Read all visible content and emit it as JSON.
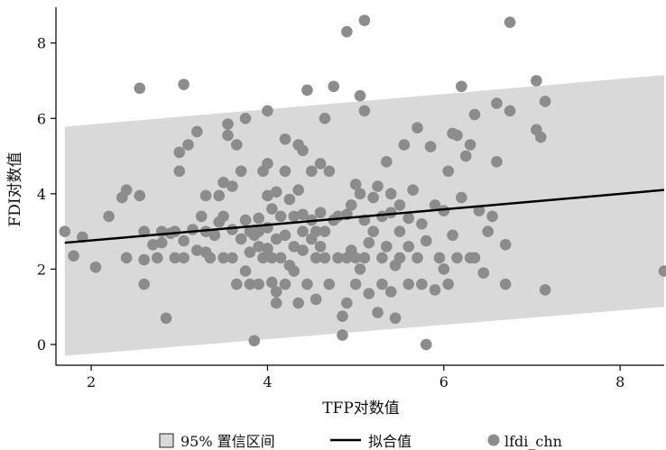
{
  "chart_data": {
    "type": "scatter",
    "title": "",
    "xlabel": "TFP对数值",
    "ylabel": "FDI对数值",
    "xlim": [
      1.6,
      8.5
    ],
    "ylim": [
      -0.55,
      8.95
    ],
    "xticks": [
      2,
      4,
      6,
      8
    ],
    "yticks": [
      0,
      2,
      4,
      6,
      8
    ],
    "grid": false,
    "legend_position": "bottom",
    "colors": {
      "points": "#8c8c8c",
      "band": "#d9d9d9",
      "fit": "#000000"
    },
    "series": [
      {
        "name": "95% 置信区间",
        "kind": "band",
        "x": [
          1.7,
          8.5
        ],
        "lower": [
          -0.3,
          1.0
        ],
        "upper": [
          5.78,
          7.15
        ]
      },
      {
        "name": "拟合值",
        "kind": "line",
        "x": [
          1.7,
          8.5
        ],
        "y": [
          2.7,
          4.1
        ]
      },
      {
        "name": "lfdi_chn",
        "kind": "scatter",
        "points": [
          [
            1.7,
            3.0
          ],
          [
            1.8,
            2.35
          ],
          [
            1.9,
            2.85
          ],
          [
            2.05,
            2.05
          ],
          [
            2.2,
            3.4
          ],
          [
            2.35,
            3.9
          ],
          [
            2.4,
            4.1
          ],
          [
            2.4,
            2.3
          ],
          [
            2.55,
            3.95
          ],
          [
            2.55,
            6.8
          ],
          [
            2.6,
            3.0
          ],
          [
            2.6,
            2.25
          ],
          [
            2.6,
            1.6
          ],
          [
            2.7,
            2.65
          ],
          [
            2.75,
            2.3
          ],
          [
            2.8,
            2.7
          ],
          [
            2.8,
            3.0
          ],
          [
            2.85,
            0.7
          ],
          [
            2.9,
            2.95
          ],
          [
            2.95,
            2.3
          ],
          [
            2.95,
            3.0
          ],
          [
            3.0,
            5.1
          ],
          [
            3.0,
            4.6
          ],
          [
            3.05,
            2.75
          ],
          [
            3.05,
            2.3
          ],
          [
            3.05,
            6.9
          ],
          [
            3.1,
            5.3
          ],
          [
            3.15,
            3.05
          ],
          [
            3.2,
            5.65
          ],
          [
            3.2,
            2.5
          ],
          [
            3.25,
            3.4
          ],
          [
            3.3,
            3.95
          ],
          [
            3.3,
            3.0
          ],
          [
            3.3,
            2.45
          ],
          [
            3.35,
            2.3
          ],
          [
            3.4,
            2.9
          ],
          [
            3.45,
            3.95
          ],
          [
            3.45,
            3.25
          ],
          [
            3.5,
            2.3
          ],
          [
            3.5,
            3.4
          ],
          [
            3.5,
            4.3
          ],
          [
            3.55,
            5.85
          ],
          [
            3.55,
            5.55
          ],
          [
            3.6,
            3.05
          ],
          [
            3.6,
            2.3
          ],
          [
            3.6,
            4.2
          ],
          [
            3.65,
            5.3
          ],
          [
            3.65,
            1.6
          ],
          [
            3.7,
            4.6
          ],
          [
            3.7,
            2.8
          ],
          [
            3.75,
            3.3
          ],
          [
            3.75,
            1.95
          ],
          [
            3.75,
            6.0
          ],
          [
            3.8,
            2.45
          ],
          [
            3.8,
            1.6
          ],
          [
            3.8,
            3.0
          ],
          [
            3.85,
            0.1
          ],
          [
            3.85,
            2.9
          ],
          [
            3.9,
            2.6
          ],
          [
            3.9,
            3.0
          ],
          [
            3.9,
            1.6
          ],
          [
            3.9,
            3.35
          ],
          [
            3.95,
            4.6
          ],
          [
            3.95,
            2.3
          ],
          [
            4.0,
            4.8
          ],
          [
            4.0,
            3.95
          ],
          [
            4.0,
            2.55
          ],
          [
            4.0,
            6.2
          ],
          [
            4.0,
            3.1
          ],
          [
            4.05,
            2.3
          ],
          [
            4.05,
            1.65
          ],
          [
            4.05,
            3.6
          ],
          [
            4.1,
            1.4
          ],
          [
            4.1,
            1.1
          ],
          [
            4.1,
            2.8
          ],
          [
            4.1,
            4.05
          ],
          [
            4.15,
            2.3
          ],
          [
            4.15,
            3.4
          ],
          [
            4.2,
            1.6
          ],
          [
            4.2,
            2.9
          ],
          [
            4.2,
            4.6
          ],
          [
            4.2,
            5.45
          ],
          [
            4.25,
            3.85
          ],
          [
            4.25,
            2.1
          ],
          [
            4.3,
            1.95
          ],
          [
            4.3,
            3.4
          ],
          [
            4.3,
            2.6
          ],
          [
            4.35,
            1.1
          ],
          [
            4.35,
            4.1
          ],
          [
            4.35,
            5.3
          ],
          [
            4.4,
            2.5
          ],
          [
            4.4,
            3.0
          ],
          [
            4.4,
            3.45
          ],
          [
            4.4,
            5.15
          ],
          [
            4.45,
            6.75
          ],
          [
            4.45,
            1.6
          ],
          [
            4.5,
            2.8
          ],
          [
            4.5,
            3.3
          ],
          [
            4.5,
            4.6
          ],
          [
            4.55,
            2.3
          ],
          [
            4.55,
            3.0
          ],
          [
            4.55,
            1.2
          ],
          [
            4.6,
            2.6
          ],
          [
            4.6,
            4.8
          ],
          [
            4.6,
            3.5
          ],
          [
            4.65,
            2.3
          ],
          [
            4.65,
            3.0
          ],
          [
            4.65,
            6.0
          ],
          [
            4.7,
            4.6
          ],
          [
            4.7,
            1.6
          ],
          [
            4.75,
            3.3
          ],
          [
            4.75,
            6.85
          ],
          [
            4.8,
            2.3
          ],
          [
            4.8,
            3.4
          ],
          [
            4.85,
            0.25
          ],
          [
            4.85,
            0.75
          ],
          [
            4.9,
            3.45
          ],
          [
            4.9,
            2.3
          ],
          [
            4.9,
            1.1
          ],
          [
            4.9,
            8.3
          ],
          [
            4.95,
            2.5
          ],
          [
            4.95,
            3.7
          ],
          [
            5.0,
            4.25
          ],
          [
            5.0,
            2.3
          ],
          [
            5.0,
            1.6
          ],
          [
            5.05,
            6.6
          ],
          [
            5.05,
            4.0
          ],
          [
            5.05,
            2.0
          ],
          [
            5.1,
            3.3
          ],
          [
            5.1,
            2.3
          ],
          [
            5.1,
            8.6
          ],
          [
            5.1,
            6.2
          ],
          [
            5.15,
            2.7
          ],
          [
            5.15,
            1.35
          ],
          [
            5.2,
            3.0
          ],
          [
            5.2,
            3.9
          ],
          [
            5.25,
            0.85
          ],
          [
            5.25,
            4.2
          ],
          [
            5.3,
            2.3
          ],
          [
            5.3,
            1.6
          ],
          [
            5.3,
            3.4
          ],
          [
            5.35,
            4.85
          ],
          [
            5.35,
            2.6
          ],
          [
            5.4,
            4.0
          ],
          [
            5.4,
            3.5
          ],
          [
            5.4,
            1.4
          ],
          [
            5.45,
            2.1
          ],
          [
            5.45,
            0.7
          ],
          [
            5.5,
            2.3
          ],
          [
            5.5,
            3.0
          ],
          [
            5.5,
            3.7
          ],
          [
            5.55,
            5.3
          ],
          [
            5.6,
            3.35
          ],
          [
            5.6,
            2.6
          ],
          [
            5.6,
            1.6
          ],
          [
            5.65,
            4.1
          ],
          [
            5.7,
            2.3
          ],
          [
            5.7,
            5.75
          ],
          [
            5.75,
            1.6
          ],
          [
            5.75,
            3.2
          ],
          [
            5.8,
            2.75
          ],
          [
            5.8,
            0.0
          ],
          [
            5.85,
            5.25
          ],
          [
            5.9,
            3.7
          ],
          [
            5.9,
            1.45
          ],
          [
            5.95,
            2.3
          ],
          [
            6.0,
            3.55
          ],
          [
            6.0,
            2.0
          ],
          [
            6.05,
            4.6
          ],
          [
            6.05,
            1.6
          ],
          [
            6.1,
            2.9
          ],
          [
            6.1,
            5.6
          ],
          [
            6.15,
            2.3
          ],
          [
            6.15,
            5.55
          ],
          [
            6.2,
            6.85
          ],
          [
            6.2,
            3.9
          ],
          [
            6.25,
            5.0
          ],
          [
            6.3,
            5.3
          ],
          [
            6.3,
            2.3
          ],
          [
            6.35,
            6.1
          ],
          [
            6.35,
            2.3
          ],
          [
            6.4,
            3.55
          ],
          [
            6.45,
            1.9
          ],
          [
            6.5,
            3.0
          ],
          [
            6.55,
            3.4
          ],
          [
            6.6,
            6.4
          ],
          [
            6.6,
            4.85
          ],
          [
            6.7,
            2.65
          ],
          [
            6.7,
            1.6
          ],
          [
            6.75,
            8.55
          ],
          [
            6.75,
            6.2
          ],
          [
            7.05,
            7.0
          ],
          [
            7.05,
            5.7
          ],
          [
            7.1,
            5.5
          ],
          [
            7.15,
            6.45
          ],
          [
            7.15,
            1.45
          ],
          [
            8.5,
            1.95
          ]
        ]
      }
    ]
  },
  "legend": {
    "items": [
      {
        "label": "95% 置信区间"
      },
      {
        "label": "拟合值"
      },
      {
        "label": "lfdi_chn"
      }
    ]
  }
}
